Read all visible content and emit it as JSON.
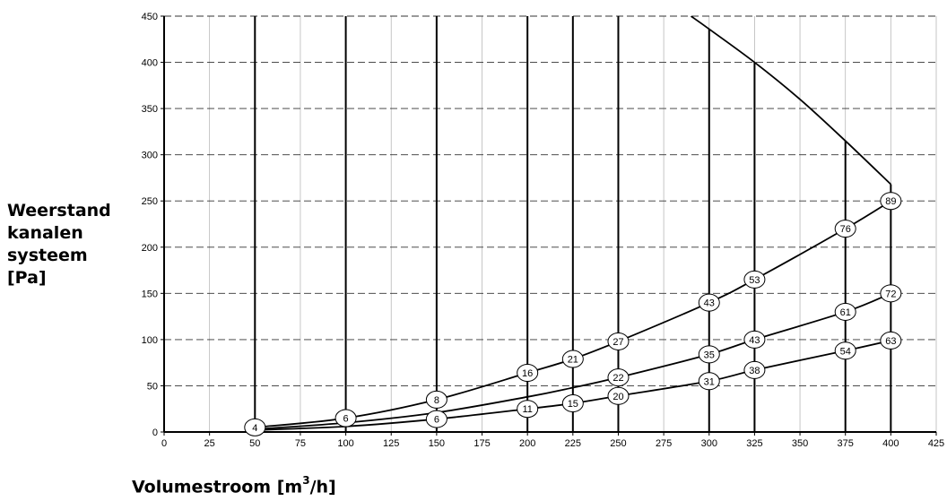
{
  "chart_data": {
    "type": "line",
    "title": "",
    "ylabel_lines": [
      "Weerstand",
      "kanalen",
      "systeem",
      "[Pa]"
    ],
    "xlabel_prefix": "Volumestroom [m",
    "xlabel_sup": "3",
    "xlabel_suffix": "/h]",
    "xlim": [
      0,
      425
    ],
    "ylim": [
      0,
      450
    ],
    "x_ticks": [
      "0",
      "25",
      "50",
      "75",
      "100",
      "125",
      "150",
      "175",
      "200",
      "225",
      "250",
      "275",
      "300",
      "325",
      "350",
      "375",
      "400",
      "425"
    ],
    "y_ticks": [
      "0",
      "50",
      "100",
      "150",
      "200",
      "250",
      "300",
      "350",
      "400",
      "450"
    ],
    "grid": true,
    "vertical_lines_x": [
      50,
      100,
      150,
      200,
      225,
      250,
      300,
      325,
      375,
      400
    ],
    "limit_curve": {
      "x": [
        290,
        300,
        325,
        350,
        375,
        400
      ],
      "y": [
        450,
        436,
        400,
        360,
        315,
        268
      ]
    },
    "series": [
      {
        "x": [
          50,
          100,
          150,
          200,
          225,
          250,
          300,
          325,
          375,
          400
        ],
        "y": [
          5,
          15,
          35,
          64,
          79,
          98,
          140,
          165,
          220,
          250
        ]
      },
      {
        "x": [
          50,
          100,
          150,
          200,
          225,
          250,
          300,
          325,
          375,
          400
        ],
        "y": [
          3,
          10,
          21,
          38,
          48,
          59,
          84,
          100,
          130,
          150
        ]
      },
      {
        "x": [
          50,
          100,
          150,
          200,
          225,
          250,
          300,
          325,
          375,
          400
        ],
        "y": [
          2,
          6,
          14,
          25,
          31,
          39,
          55,
          67,
          88,
          99
        ]
      }
    ],
    "point_labels": [
      {
        "x": 50,
        "y": 5,
        "text": "4"
      },
      {
        "x": 100,
        "y": 15,
        "text": "6"
      },
      {
        "x": 150,
        "y": 35,
        "text": "8"
      },
      {
        "x": 150,
        "y": 14,
        "text": "6"
      },
      {
        "x": 200,
        "y": 64,
        "text": "16"
      },
      {
        "x": 200,
        "y": 25,
        "text": "11"
      },
      {
        "x": 225,
        "y": 79,
        "text": "21"
      },
      {
        "x": 225,
        "y": 31,
        "text": "15"
      },
      {
        "x": 250,
        "y": 98,
        "text": "27"
      },
      {
        "x": 250,
        "y": 59,
        "text": "22"
      },
      {
        "x": 250,
        "y": 39,
        "text": "20"
      },
      {
        "x": 300,
        "y": 140,
        "text": "43"
      },
      {
        "x": 300,
        "y": 84,
        "text": "35"
      },
      {
        "x": 300,
        "y": 55,
        "text": "31"
      },
      {
        "x": 325,
        "y": 165,
        "text": "53"
      },
      {
        "x": 325,
        "y": 100,
        "text": "43"
      },
      {
        "x": 325,
        "y": 67,
        "text": "38"
      },
      {
        "x": 375,
        "y": 220,
        "text": "76"
      },
      {
        "x": 375,
        "y": 130,
        "text": "61"
      },
      {
        "x": 375,
        "y": 88,
        "text": "54"
      },
      {
        "x": 400,
        "y": 250,
        "text": "89"
      },
      {
        "x": 400,
        "y": 150,
        "text": "72"
      },
      {
        "x": 400,
        "y": 99,
        "text": "63"
      }
    ]
  }
}
